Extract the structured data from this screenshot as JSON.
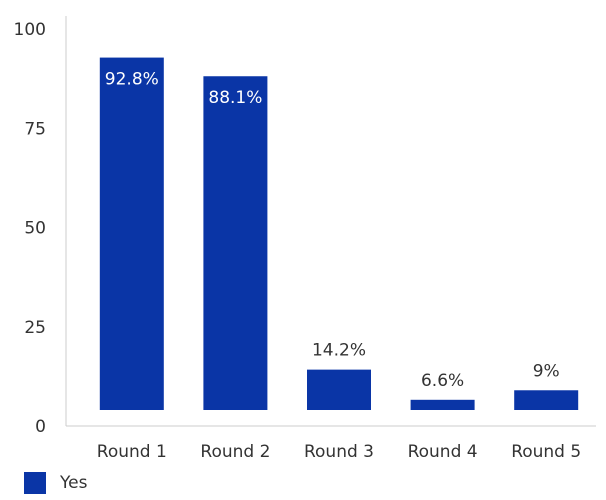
{
  "chart_data": {
    "type": "bar",
    "categories": [
      "Round 1",
      "Round 2",
      "Round 3",
      "Round 4",
      "Round 5"
    ],
    "series": [
      {
        "name": "Yes",
        "values": [
          92.8,
          88.1,
          14.2,
          6.6,
          9
        ],
        "color": "#0a35a6"
      }
    ],
    "data_labels": [
      "92.8%",
      "88.1%",
      "14.2%",
      "6.6%",
      "9%"
    ],
    "yticks": [
      "0",
      "25",
      "50",
      "75",
      "100"
    ],
    "ylim": [
      0,
      100
    ],
    "grid": false,
    "legend": "bottom-left",
    "label_color_inside": "#ffffff",
    "label_color_outside": "#333333",
    "axis_color": "#cccccc"
  }
}
